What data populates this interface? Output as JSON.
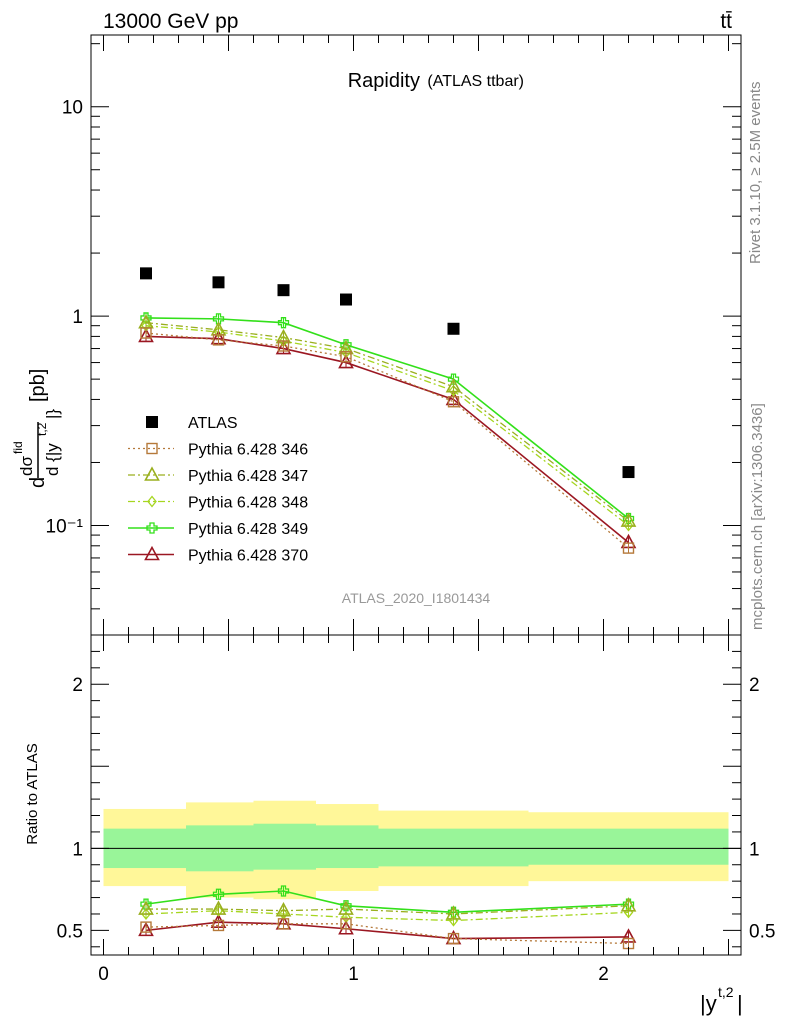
{
  "header": {
    "left": "13000 GeV pp",
    "right": "tt̄"
  },
  "side_labels": {
    "top": "Rivet 3.1.10, ≥ 2.5M events",
    "bottom": "mcplots.cern.ch [arXiv:1306.3436]"
  },
  "chart_data": [
    {
      "type": "scatter",
      "title": "Rapidity",
      "subtitle": "(ATLAS ttbar)",
      "ylabel": "dσ^fid / d{|y^t,2|} [pb]",
      "yscale": "log",
      "ylim": [
        0.03,
        22
      ],
      "xlim": [
        -0.05,
        2.55
      ],
      "yticks": [
        {
          "value": 10,
          "label": "10"
        },
        {
          "value": 1,
          "label": "1"
        },
        {
          "value": 0.1,
          "label": "10⁻¹"
        }
      ],
      "watermark": "ATLAS_2020_I1801434",
      "legend_position": "middle-left",
      "x": [
        0.17,
        0.46,
        0.72,
        0.97,
        1.4,
        2.1
      ],
      "series": [
        {
          "name": "ATLAS",
          "color": "#000000",
          "marker": "square-filled",
          "line": "none",
          "values": [
            1.6,
            1.45,
            1.33,
            1.2,
            0.87,
            0.18
          ]
        },
        {
          "name": "Pythia 6.428 346",
          "color": "#b5793a",
          "marker": "square-open",
          "line": "dotted",
          "values": [
            0.83,
            0.77,
            0.72,
            0.64,
            0.39,
            0.078
          ]
        },
        {
          "name": "Pythia 6.428 347",
          "color": "#9aaf1f",
          "marker": "triangle-open",
          "line": "dashdot",
          "values": [
            0.93,
            0.86,
            0.79,
            0.7,
            0.46,
            0.105
          ]
        },
        {
          "name": "Pythia 6.428 348",
          "color": "#a6d620",
          "marker": "diamond-open",
          "line": "dashdot",
          "values": [
            0.9,
            0.84,
            0.76,
            0.67,
            0.44,
            0.1
          ]
        },
        {
          "name": "Pythia 6.428 349",
          "color": "#33e01a",
          "marker": "cross-open",
          "line": "solid",
          "values": [
            0.98,
            0.97,
            0.93,
            0.73,
            0.5,
            0.108
          ]
        },
        {
          "name": "Pythia 6.428 370",
          "color": "#9b1722",
          "marker": "triangle-open",
          "line": "solid",
          "values": [
            0.8,
            0.78,
            0.7,
            0.6,
            0.4,
            0.083
          ]
        }
      ]
    },
    {
      "type": "line",
      "ylabel": "Ratio to ATLAS",
      "xlabel": "|y^t,2|",
      "ylim": [
        0.35,
        2.3
      ],
      "xlim": [
        -0.05,
        2.55
      ],
      "yticks": [
        {
          "value": 2,
          "label": "2"
        },
        {
          "value": 1,
          "label": "1"
        },
        {
          "value": 0.5,
          "label": "0.5"
        }
      ],
      "xticks": [
        {
          "value": 0,
          "label": "0"
        },
        {
          "value": 1,
          "label": "1"
        },
        {
          "value": 2,
          "label": "2"
        }
      ],
      "reference_line": 1,
      "bins": [
        0,
        0.33,
        0.6,
        0.85,
        1.1,
        1.7,
        2.5
      ],
      "band_inner": [
        [
          0.88,
          1.12
        ],
        [
          0.86,
          1.14
        ],
        [
          0.87,
          1.15
        ],
        [
          0.88,
          1.14
        ],
        [
          0.89,
          1.12
        ],
        [
          0.9,
          1.12
        ]
      ],
      "band_outer": [
        [
          0.77,
          1.24
        ],
        [
          0.7,
          1.28
        ],
        [
          0.69,
          1.29
        ],
        [
          0.74,
          1.27
        ],
        [
          0.77,
          1.23
        ],
        [
          0.8,
          1.22
        ]
      ],
      "band_colors": {
        "inner": "#99f599",
        "outer": "#fff799"
      },
      "x": [
        0.17,
        0.46,
        0.72,
        0.97,
        1.4,
        2.1
      ],
      "series": [
        {
          "name": "Pythia 6.428 346",
          "color": "#b5793a",
          "marker": "square-open",
          "line": "dotted",
          "values": [
            0.52,
            0.53,
            0.54,
            0.54,
            0.45,
            0.42
          ]
        },
        {
          "name": "Pythia 6.428 347",
          "color": "#9aaf1f",
          "marker": "triangle-open",
          "line": "dashdot",
          "values": [
            0.63,
            0.63,
            0.62,
            0.63,
            0.6,
            0.65
          ]
        },
        {
          "name": "Pythia 6.428 348",
          "color": "#a6d620",
          "marker": "diamond-open",
          "line": "dashdot",
          "values": [
            0.6,
            0.62,
            0.6,
            0.58,
            0.56,
            0.61
          ]
        },
        {
          "name": "Pythia 6.428 349",
          "color": "#33e01a",
          "marker": "cross-open",
          "line": "solid",
          "values": [
            0.66,
            0.72,
            0.74,
            0.65,
            0.61,
            0.66
          ]
        },
        {
          "name": "Pythia 6.428 370",
          "color": "#9b1722",
          "marker": "triangle-open",
          "line": "solid",
          "values": [
            0.5,
            0.55,
            0.54,
            0.51,
            0.45,
            0.46
          ]
        }
      ]
    }
  ]
}
